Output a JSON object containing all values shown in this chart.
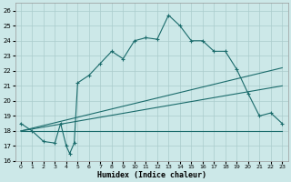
{
  "xlabel": "Humidex (Indice chaleur)",
  "bg_color": "#cce8e8",
  "line_color": "#1a6b6b",
  "grid_color": "#aacccc",
  "xlim": [
    -0.5,
    23.5
  ],
  "ylim": [
    16,
    26.5
  ],
  "xticks": [
    0,
    1,
    2,
    3,
    4,
    5,
    6,
    7,
    8,
    9,
    10,
    11,
    12,
    13,
    14,
    15,
    16,
    17,
    18,
    19,
    20,
    21,
    22,
    23
  ],
  "yticks": [
    16,
    17,
    18,
    19,
    20,
    21,
    22,
    23,
    24,
    25,
    26
  ],
  "curve_x": [
    0,
    1,
    2,
    3,
    3.5,
    4,
    4.3,
    4.7,
    5,
    6,
    7,
    8,
    9,
    10,
    11,
    12,
    13,
    14,
    15,
    16,
    17,
    18,
    19,
    20,
    21,
    22,
    23
  ],
  "curve_y": [
    18.5,
    18.0,
    17.3,
    17.2,
    18.5,
    17.0,
    16.5,
    17.2,
    21.2,
    21.7,
    22.5,
    23.3,
    22.8,
    24.0,
    24.2,
    24.1,
    25.7,
    25.0,
    24.0,
    24.0,
    23.3,
    23.3,
    22.1,
    20.5,
    19.0,
    19.2,
    18.5
  ],
  "reg_line1_x": [
    0,
    23
  ],
  "reg_line1_y": [
    18.0,
    18.0
  ],
  "reg_line2_x": [
    0,
    23
  ],
  "reg_line2_y": [
    18.0,
    21.0
  ],
  "reg_line3_x": [
    0,
    23
  ],
  "reg_line3_y": [
    18.0,
    22.2
  ]
}
